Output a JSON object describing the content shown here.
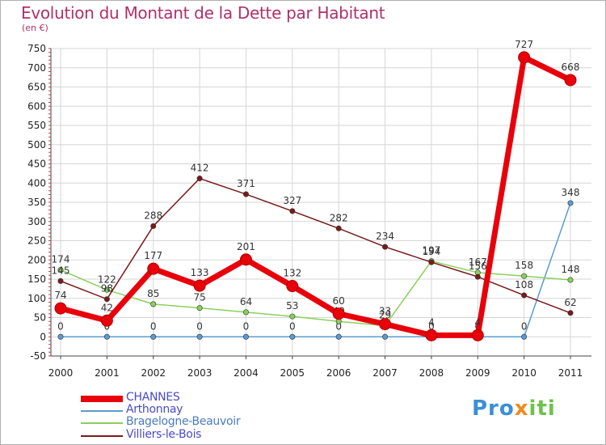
{
  "title": "Evolution du Montant de la Dette par Habitant",
  "unit": "(en €)",
  "logo": {
    "text": "Proxiti",
    "parts": [
      "Pro",
      "x",
      "iti"
    ]
  },
  "chart_data": {
    "type": "line",
    "x": [
      "2000",
      "2001",
      "2002",
      "2003",
      "2004",
      "2005",
      "2006",
      "2007",
      "2008",
      "2009",
      "2010",
      "2011"
    ],
    "ylim": [
      -50,
      750
    ],
    "yticks": [
      -50,
      0,
      50,
      100,
      150,
      200,
      250,
      300,
      350,
      400,
      450,
      500,
      550,
      600,
      650,
      700,
      750
    ],
    "grid": true,
    "legend_position": "bottom-left",
    "series": [
      {
        "name": "CHANNES",
        "color": "#e8000b",
        "values": [
          74,
          42,
          177,
          133,
          201,
          132,
          60,
          33,
          4,
          4,
          727,
          668
        ]
      },
      {
        "name": "Arthonnay",
        "color": "#5b9bd0",
        "values": [
          0,
          0,
          0,
          0,
          0,
          0,
          0,
          0,
          0,
          0,
          0,
          348
        ]
      },
      {
        "name": "Bragelogne-Beauvoir",
        "color": "#8ad05a",
        "values": [
          174,
          122,
          85,
          75,
          64,
          53,
          40,
          29,
          197,
          167,
          158,
          148
        ]
      },
      {
        "name": "Villiers-le-Bois",
        "color": "#7a1a1a",
        "values": [
          145,
          98,
          288,
          412,
          371,
          327,
          282,
          234,
          194,
          156,
          108,
          62
        ]
      }
    ]
  }
}
